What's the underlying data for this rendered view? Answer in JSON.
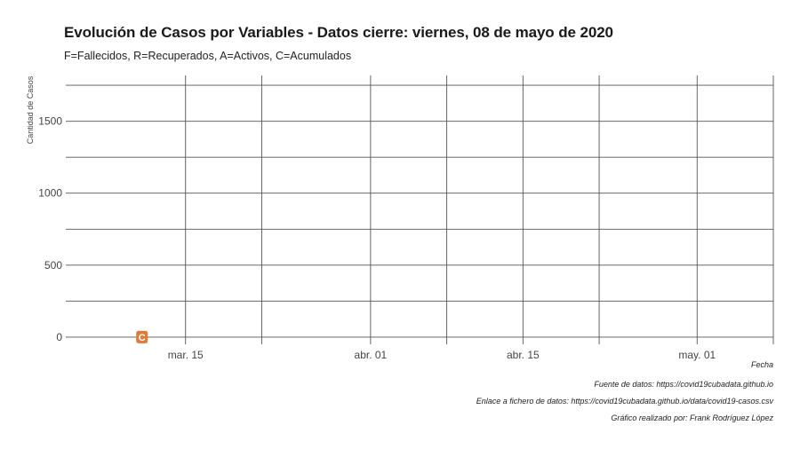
{
  "chart_data": {
    "type": "scatter",
    "title": "Evolución de Casos por Variables - Datos cierre: viernes, 08 de mayo de 2020",
    "subtitle": "F=Fallecidos, R=Recuperados, A=Activos, C=Acumulados",
    "xlabel": "Fecha",
    "ylabel": "Cantidad de Casos",
    "xlim": [
      "2020-03-04",
      "2020-05-08"
    ],
    "ylim": [
      -50,
      1800
    ],
    "x_ticks": [
      {
        "date": "2020-03-15",
        "label": "mar. 15"
      },
      {
        "date": "2020-04-01",
        "label": "abr. 01"
      },
      {
        "date": "2020-04-15",
        "label": "abr. 15"
      },
      {
        "date": "2020-05-01",
        "label": "may. 01"
      }
    ],
    "x_minor_gridlines": [
      "2020-03-22",
      "2020-04-08",
      "2020-04-22",
      "2020-05-08"
    ],
    "y_ticks": [
      0,
      500,
      1000,
      1500
    ],
    "y_minor_gridlines": [
      250,
      750,
      1250,
      1750
    ],
    "grid": true,
    "points": [
      {
        "x": "2020-03-11",
        "y": 0,
        "label": "C",
        "color": "#e07b39"
      }
    ]
  },
  "captions": {
    "x_axis_title": "Fecha",
    "source": "Fuente de datos: https://covid19cubadata.github.io",
    "data_link": "Enlace a fichero de datos: https://covid19cubadata.github.io/data/covid19-casos.csv",
    "author": "Gráfico realizado por: Frank Rodríguez López"
  },
  "colors": {
    "grid": "#555555",
    "point_fill": "#e07b39",
    "point_text": "#ffffff"
  }
}
